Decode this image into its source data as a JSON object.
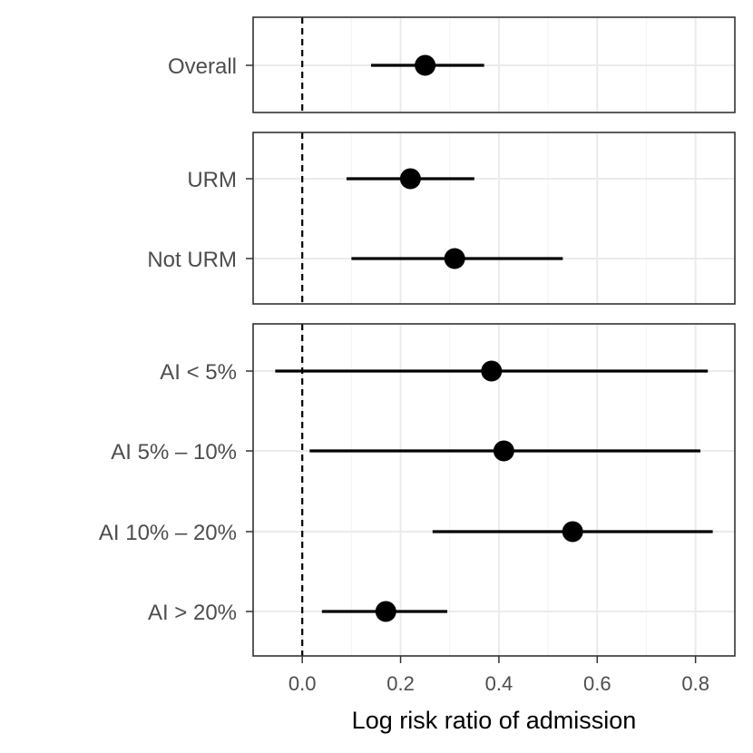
{
  "chart_data": {
    "type": "forest",
    "xlabel": "Log risk ratio of admission",
    "xlim": [
      -0.1,
      0.88
    ],
    "x_ticks": [
      0.0,
      0.2,
      0.4,
      0.6,
      0.8
    ],
    "x_tick_labels": [
      "0.0",
      "0.2",
      "0.4",
      "0.6",
      "0.8"
    ],
    "reference_line": 0.0,
    "grid": true,
    "panels": [
      {
        "rows": [
          {
            "label": "Overall",
            "estimate": 0.25,
            "lower": 0.14,
            "upper": 0.37
          }
        ]
      },
      {
        "rows": [
          {
            "label": "URM",
            "estimate": 0.22,
            "lower": 0.09,
            "upper": 0.35
          },
          {
            "label": "Not URM",
            "estimate": 0.31,
            "lower": 0.1,
            "upper": 0.53
          }
        ]
      },
      {
        "rows": [
          {
            "label": "AI < 5%",
            "estimate": 0.385,
            "lower": -0.055,
            "upper": 0.825
          },
          {
            "label": "AI 5% – 10%",
            "estimate": 0.41,
            "lower": 0.015,
            "upper": 0.81
          },
          {
            "label": "AI 10% – 20%",
            "estimate": 0.55,
            "lower": 0.265,
            "upper": 0.835
          },
          {
            "label": "AI > 20%",
            "estimate": 0.17,
            "lower": 0.04,
            "upper": 0.295
          }
        ]
      }
    ],
    "colors": {
      "point": "#000000",
      "interval": "#000000",
      "grid_major": "#ebebeb",
      "grid_minor": "#f5f5f5",
      "panel_border": "#333333",
      "axis_text": "#4d4d4d"
    }
  }
}
